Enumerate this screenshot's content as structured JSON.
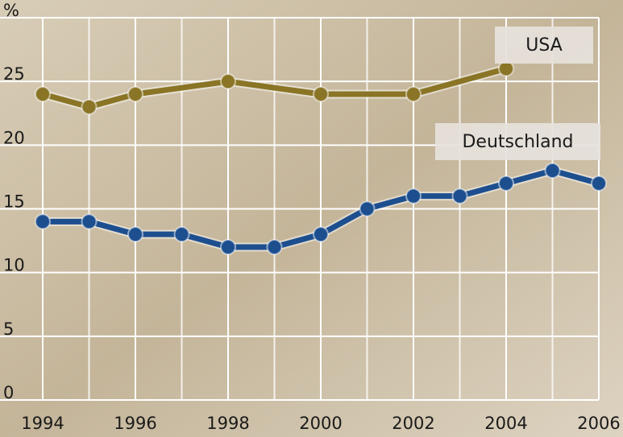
{
  "chart_data": {
    "type": "line",
    "xlim": [
      1994,
      2006
    ],
    "xticks": [
      1994,
      1996,
      1998,
      2000,
      2002,
      2004,
      2006
    ],
    "ylim": [
      0,
      30
    ],
    "yticks": [
      0,
      5,
      10,
      15,
      20,
      25,
      {
        "value": 30,
        "label": "%"
      }
    ],
    "grid": true,
    "series": [
      {
        "name": "USA",
        "color": "#8a7526",
        "x": [
          1994,
          1995,
          1996,
          1998,
          2000,
          2002,
          2004
        ],
        "values": [
          24,
          23,
          24,
          25,
          24,
          24,
          26
        ]
      },
      {
        "name": "Deutschland",
        "color": "#1d4f8f",
        "x": [
          1994,
          1995,
          1996,
          1997,
          1998,
          1999,
          2000,
          2001,
          2002,
          2003,
          2004,
          2005,
          2006
        ],
        "values": [
          14,
          14,
          13,
          13,
          12,
          12,
          13,
          15,
          16,
          16,
          17,
          18,
          17
        ]
      }
    ]
  }
}
